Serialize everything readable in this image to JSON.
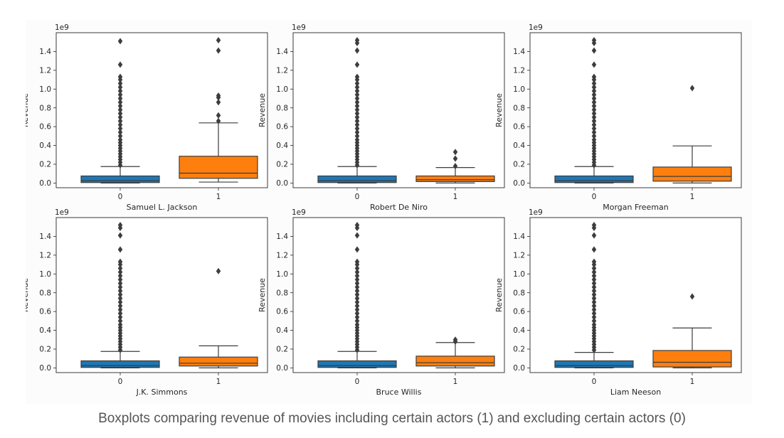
{
  "caption": "Boxplots comparing revenue of movies including certain actors (1) and excluding certain actors (0)",
  "colors": {
    "group0": "#1f77b4",
    "group1": "#ff7f0e",
    "line": "#3d3d3d",
    "axis": "#262626"
  },
  "chart_data": [
    {
      "type": "box",
      "xlabel": "Samuel L. Jackson",
      "ylabel": "Revenue",
      "offset_text": "1e9",
      "categories": [
        "0",
        "1"
      ],
      "ylim": [
        -0.05,
        1.6
      ],
      "yticks": [
        0.0,
        0.2,
        0.4,
        0.6,
        0.8,
        1.0,
        1.2,
        1.4
      ],
      "ytick_labels": [
        "0.0",
        "0.2",
        "0.4",
        "0.6",
        "0.8",
        "1.0",
        "1.2",
        "1.4"
      ],
      "boxes": [
        {
          "q1": 0.005,
          "median": 0.025,
          "q3": 0.075,
          "whisker_low": 0.0,
          "whisker_high": 0.175,
          "outliers": [
            0.19,
            0.22,
            0.25,
            0.28,
            0.31,
            0.34,
            0.37,
            0.4,
            0.43,
            0.46,
            0.5,
            0.54,
            0.58,
            0.62,
            0.66,
            0.7,
            0.74,
            0.78,
            0.82,
            0.86,
            0.9,
            0.94,
            0.98,
            1.02,
            1.06,
            1.1,
            1.13,
            1.26,
            1.51
          ]
        },
        {
          "q1": 0.05,
          "median": 0.105,
          "q3": 0.285,
          "whisker_low": 0.01,
          "whisker_high": 0.64,
          "outliers": [
            0.66,
            0.72,
            0.86,
            0.91,
            0.93,
            1.41,
            1.52
          ]
        }
      ]
    },
    {
      "type": "box",
      "xlabel": "Robert De Niro",
      "ylabel": "Revenue",
      "offset_text": "1e9",
      "categories": [
        "0",
        "1"
      ],
      "ylim": [
        -0.05,
        1.6
      ],
      "yticks": [
        0.0,
        0.2,
        0.4,
        0.6,
        0.8,
        1.0,
        1.2,
        1.4
      ],
      "ytick_labels": [
        "0.0",
        "0.2",
        "0.4",
        "0.6",
        "0.8",
        "1.0",
        "1.2",
        "1.4"
      ],
      "boxes": [
        {
          "q1": 0.005,
          "median": 0.025,
          "q3": 0.075,
          "whisker_low": 0.0,
          "whisker_high": 0.175,
          "outliers": [
            0.19,
            0.22,
            0.25,
            0.28,
            0.31,
            0.34,
            0.37,
            0.4,
            0.43,
            0.46,
            0.5,
            0.54,
            0.58,
            0.62,
            0.66,
            0.7,
            0.74,
            0.78,
            0.82,
            0.86,
            0.9,
            0.94,
            0.98,
            1.02,
            1.06,
            1.1,
            1.13,
            1.26,
            1.41,
            1.49,
            1.52
          ]
        },
        {
          "q1": 0.015,
          "median": 0.035,
          "q3": 0.075,
          "whisker_low": 0.0,
          "whisker_high": 0.165,
          "outliers": [
            0.18,
            0.26,
            0.33
          ]
        }
      ]
    },
    {
      "type": "box",
      "xlabel": "Morgan Freeman",
      "ylabel": "Revenue",
      "offset_text": "1e9",
      "categories": [
        "0",
        "1"
      ],
      "ylim": [
        -0.05,
        1.6
      ],
      "yticks": [
        0.0,
        0.2,
        0.4,
        0.6,
        0.8,
        1.0,
        1.2,
        1.4
      ],
      "ytick_labels": [
        "0.0",
        "0.2",
        "0.4",
        "0.6",
        "0.8",
        "1.0",
        "1.2",
        "1.4"
      ],
      "boxes": [
        {
          "q1": 0.005,
          "median": 0.025,
          "q3": 0.075,
          "whisker_low": 0.0,
          "whisker_high": 0.175,
          "outliers": [
            0.19,
            0.22,
            0.25,
            0.28,
            0.31,
            0.34,
            0.37,
            0.4,
            0.43,
            0.46,
            0.5,
            0.54,
            0.58,
            0.62,
            0.66,
            0.7,
            0.74,
            0.78,
            0.82,
            0.86,
            0.9,
            0.94,
            0.98,
            1.02,
            1.06,
            1.1,
            1.13,
            1.26,
            1.41,
            1.49,
            1.52
          ]
        },
        {
          "q1": 0.02,
          "median": 0.07,
          "q3": 0.17,
          "whisker_low": 0.0,
          "whisker_high": 0.395,
          "outliers": [
            1.01
          ]
        }
      ]
    },
    {
      "type": "box",
      "xlabel": "J.K. Simmons",
      "ylabel": "Revenue",
      "offset_text": "1e9",
      "categories": [
        "0",
        "1"
      ],
      "ylim": [
        -0.05,
        1.6
      ],
      "yticks": [
        0.0,
        0.2,
        0.4,
        0.6,
        0.8,
        1.0,
        1.2,
        1.4
      ],
      "ytick_labels": [
        "0.0",
        "0.2",
        "0.4",
        "0.6",
        "0.8",
        "1.0",
        "1.2",
        "1.4"
      ],
      "boxes": [
        {
          "q1": 0.005,
          "median": 0.025,
          "q3": 0.075,
          "whisker_low": 0.0,
          "whisker_high": 0.175,
          "outliers": [
            0.19,
            0.22,
            0.25,
            0.28,
            0.31,
            0.34,
            0.37,
            0.4,
            0.43,
            0.46,
            0.5,
            0.54,
            0.58,
            0.62,
            0.66,
            0.7,
            0.74,
            0.78,
            0.82,
            0.86,
            0.9,
            0.94,
            0.98,
            1.02,
            1.06,
            1.1,
            1.13,
            1.26,
            1.41,
            1.49,
            1.52
          ]
        },
        {
          "q1": 0.02,
          "median": 0.05,
          "q3": 0.115,
          "whisker_low": 0.0,
          "whisker_high": 0.235,
          "outliers": [
            1.03
          ]
        }
      ]
    },
    {
      "type": "box",
      "xlabel": "Bruce Willis",
      "ylabel": "Revenue",
      "offset_text": "1e9",
      "categories": [
        "0",
        "1"
      ],
      "ylim": [
        -0.05,
        1.6
      ],
      "yticks": [
        0.0,
        0.2,
        0.4,
        0.6,
        0.8,
        1.0,
        1.2,
        1.4
      ],
      "ytick_labels": [
        "0.0",
        "0.2",
        "0.4",
        "0.6",
        "0.8",
        "1.0",
        "1.2",
        "1.4"
      ],
      "boxes": [
        {
          "q1": 0.005,
          "median": 0.025,
          "q3": 0.075,
          "whisker_low": 0.0,
          "whisker_high": 0.175,
          "outliers": [
            0.19,
            0.22,
            0.25,
            0.28,
            0.31,
            0.34,
            0.37,
            0.4,
            0.43,
            0.46,
            0.5,
            0.54,
            0.58,
            0.62,
            0.66,
            0.7,
            0.74,
            0.78,
            0.82,
            0.86,
            0.9,
            0.94,
            0.98,
            1.02,
            1.06,
            1.1,
            1.13,
            1.26,
            1.41,
            1.49,
            1.52
          ]
        },
        {
          "q1": 0.02,
          "median": 0.055,
          "q3": 0.125,
          "whisker_low": 0.0,
          "whisker_high": 0.27,
          "outliers": [
            0.28,
            0.3
          ]
        }
      ]
    },
    {
      "type": "box",
      "xlabel": "Liam Neeson",
      "ylabel": "Revenue",
      "offset_text": "1e9",
      "categories": [
        "0",
        "1"
      ],
      "ylim": [
        -0.05,
        1.6
      ],
      "yticks": [
        0.0,
        0.2,
        0.4,
        0.6,
        0.8,
        1.0,
        1.2,
        1.4
      ],
      "ytick_labels": [
        "0.0",
        "0.2",
        "0.4",
        "0.6",
        "0.8",
        "1.0",
        "1.2",
        "1.4"
      ],
      "boxes": [
        {
          "q1": 0.005,
          "median": 0.025,
          "q3": 0.075,
          "whisker_low": 0.0,
          "whisker_high": 0.165,
          "outliers": [
            0.19,
            0.22,
            0.25,
            0.28,
            0.31,
            0.34,
            0.37,
            0.4,
            0.43,
            0.46,
            0.5,
            0.54,
            0.58,
            0.62,
            0.66,
            0.7,
            0.74,
            0.78,
            0.82,
            0.86,
            0.9,
            0.94,
            0.98,
            1.02,
            1.06,
            1.1,
            1.13,
            1.26,
            1.41,
            1.49,
            1.52
          ]
        },
        {
          "q1": 0.01,
          "median": 0.06,
          "q3": 0.185,
          "whisker_low": 0.0,
          "whisker_high": 0.425,
          "outliers": [
            0.76
          ]
        }
      ]
    }
  ]
}
